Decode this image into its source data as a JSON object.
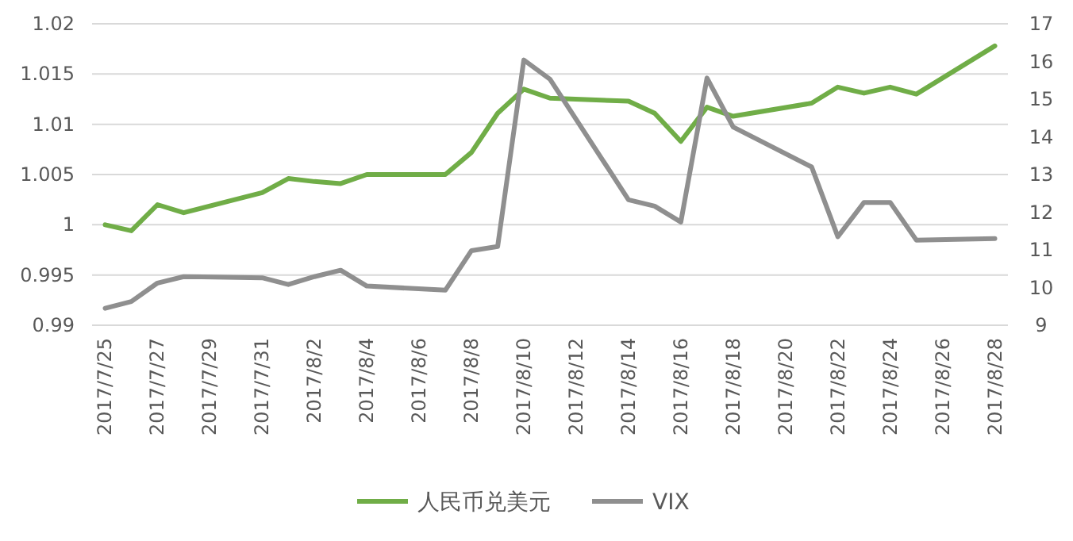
{
  "chart_data": {
    "type": "line",
    "xlim": [
      "2017-07-24T12:00",
      "2017-08-28T12:00"
    ],
    "xticks": [
      {
        "value": "2017-07-25",
        "label": "2017/7/25"
      },
      {
        "value": "2017-07-27",
        "label": "2017/7/27"
      },
      {
        "value": "2017-07-29",
        "label": "2017/7/29"
      },
      {
        "value": "2017-07-31",
        "label": "2017/7/31"
      },
      {
        "value": "2017-08-02",
        "label": "2017/8/2"
      },
      {
        "value": "2017-08-04",
        "label": "2017/8/4"
      },
      {
        "value": "2017-08-06",
        "label": "2017/8/6"
      },
      {
        "value": "2017-08-08",
        "label": "2017/8/8"
      },
      {
        "value": "2017-08-10",
        "label": "2017/8/10"
      },
      {
        "value": "2017-08-12",
        "label": "2017/8/12"
      },
      {
        "value": "2017-08-14",
        "label": "2017/8/14"
      },
      {
        "value": "2017-08-16",
        "label": "2017/8/16"
      },
      {
        "value": "2017-08-18",
        "label": "2017/8/18"
      },
      {
        "value": "2017-08-20",
        "label": "2017/8/20"
      },
      {
        "value": "2017-08-22",
        "label": "2017/8/22"
      },
      {
        "value": "2017-08-24",
        "label": "2017/8/24"
      },
      {
        "value": "2017-08-26",
        "label": "2017/8/26"
      },
      {
        "value": "2017-08-28",
        "label": "2017/8/28"
      }
    ],
    "ylim": [
      0.99,
      1.02
    ],
    "yticks": [
      0.99,
      0.995,
      1,
      1.005,
      1.01,
      1.015,
      1.02
    ],
    "y2lim": [
      9,
      17
    ],
    "y2ticks": [
      9,
      10,
      11,
      12,
      13,
      14,
      15,
      16,
      17
    ],
    "grid": "y",
    "legend": "bottom",
    "marker": "none",
    "line_style": "solid",
    "series": [
      {
        "name": "人民币兑美元",
        "color": "#70ad47",
        "x": [
          "2017-07-25",
          "2017-07-26",
          "2017-07-27",
          "2017-07-28",
          "2017-07-31",
          "2017-08-01",
          "2017-08-02",
          "2017-08-03",
          "2017-08-04",
          "2017-08-07",
          "2017-08-08",
          "2017-08-09",
          "2017-08-10",
          "2017-08-11",
          "2017-08-14",
          "2017-08-15",
          "2017-08-16",
          "2017-08-17",
          "2017-08-18",
          "2017-08-21",
          "2017-08-22",
          "2017-08-23",
          "2017-08-24",
          "2017-08-25",
          "2017-08-28"
        ],
        "values": [
          1.0,
          0.9994,
          1.002,
          1.0012,
          1.0032,
          1.0046,
          1.0043,
          1.0041,
          1.005,
          1.005,
          1.0072,
          1.0111,
          1.0135,
          1.0126,
          1.0123,
          1.0111,
          1.0083,
          1.0117,
          1.0108,
          1.0121,
          1.0137,
          1.0131,
          1.0137,
          1.013,
          1.0178
        ]
      },
      {
        "name": "VIX",
        "color": "#8f8f8f",
        "axis": "y2",
        "x": [
          "2017-07-25",
          "2017-07-26",
          "2017-07-27",
          "2017-07-28",
          "2017-07-31",
          "2017-08-01",
          "2017-08-02",
          "2017-08-03",
          "2017-08-04",
          "2017-08-07",
          "2017-08-08",
          "2017-08-09",
          "2017-08-10",
          "2017-08-11",
          "2017-08-14",
          "2017-08-15",
          "2017-08-16",
          "2017-08-17",
          "2017-08-18",
          "2017-08-21",
          "2017-08-22",
          "2017-08-23",
          "2017-08-24",
          "2017-08-25",
          "2017-08-28"
        ],
        "values": [
          9.45,
          9.63,
          10.12,
          10.29,
          10.26,
          10.08,
          10.29,
          10.46,
          10.04,
          9.93,
          10.98,
          11.09,
          16.04,
          15.53,
          12.33,
          12.16,
          11.74,
          15.56,
          14.26,
          13.2,
          11.35,
          12.26,
          12.26,
          11.26,
          11.3
        ]
      }
    ]
  }
}
